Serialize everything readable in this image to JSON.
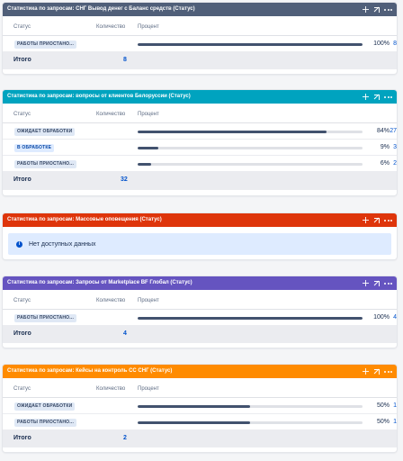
{
  "columns": {
    "status": "Статус",
    "count": "Количество",
    "percent": "Процент"
  },
  "total_label": "Итого",
  "gadgets": [
    {
      "title": "Статистика по запросам: СНГ Вывод денег с Баланс средств (Статус)",
      "color": "#505f79",
      "rows": [
        {
          "status": "РАБОТЫ ПРИОСТАНО...",
          "count": "8",
          "percent": "100%",
          "fraction": 1.0
        }
      ],
      "total": "8"
    },
    {
      "title": "Статистика по запросам: вопросы от клиентов Белоруссии (Статус)",
      "color": "#00a3bf",
      "rows": [
        {
          "status": "ОЖИДАЕТ ОБРАБОТКИ",
          "count": "27",
          "percent": "84%",
          "fraction": 0.84
        },
        {
          "status": "В ОБРАБОТКЕ",
          "count": "3",
          "percent": "9%",
          "fraction": 0.09
        },
        {
          "status": "РАБОТЫ ПРИОСТАНО...",
          "count": "2",
          "percent": "6%",
          "fraction": 0.06
        }
      ],
      "total": "32"
    },
    {
      "title": "Статистика по запросам: Массовые оповещения (Статус)",
      "color": "#de350b",
      "empty_text": "Нет доступных данных"
    },
    {
      "title": "Статистика по запросам: Запросы от Marketplace BF Глобал (Статус)",
      "color": "#6554c0",
      "rows": [
        {
          "status": "РАБОТЫ ПРИОСТАНО...",
          "count": "4",
          "percent": "100%",
          "fraction": 1.0
        }
      ],
      "total": "4"
    },
    {
      "title": "Статистика по запросам: Кейсы на контроль СС СНГ (Статус)",
      "color": "#ff8b00",
      "rows": [
        {
          "status": "ОЖИДАЕТ ОБРАБОТКИ",
          "count": "1",
          "percent": "50%",
          "fraction": 0.5
        },
        {
          "status": "РАБОТЫ ПРИОСТАНО...",
          "count": "1",
          "percent": "50%",
          "fraction": 0.5
        }
      ],
      "total": "2"
    }
  ]
}
